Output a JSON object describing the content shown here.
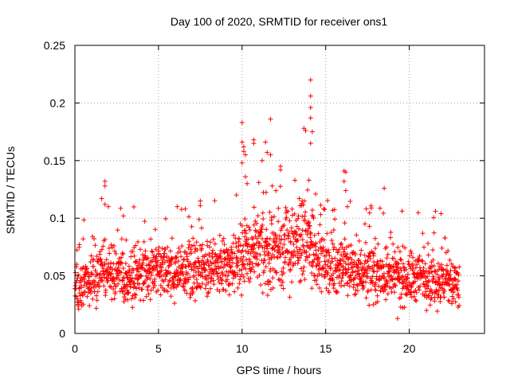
{
  "chart_data": {
    "type": "scatter",
    "title": "Day 100 of 2020, SRMTID for receiver ons1",
    "xlabel": "GPS time / hours",
    "ylabel": "SRMTID / TECUs",
    "xlim": [
      0,
      24.5
    ],
    "ylim": [
      0,
      0.25
    ],
    "xticks": [
      0,
      5,
      10,
      15,
      20
    ],
    "yticks": [
      0,
      0.05,
      0.1,
      0.15,
      0.2,
      0.25
    ],
    "xtick_labels": [
      "0",
      "5",
      "10",
      "15",
      "20"
    ],
    "ytick_labels": [
      "0",
      "0.05",
      "0.1",
      "0.15",
      "0.2",
      "0.25"
    ],
    "grid": true,
    "marker": "+",
    "colors": {
      "points": "#ff0000",
      "axes": "#000000",
      "grid": "#a0a0a0"
    },
    "x_range_data": [
      0,
      23
    ],
    "baseline_profile": [
      {
        "x": 0,
        "y": 0.042
      },
      {
        "x": 1,
        "y": 0.048
      },
      {
        "x": 2,
        "y": 0.055
      },
      {
        "x": 3,
        "y": 0.05
      },
      {
        "x": 4,
        "y": 0.052
      },
      {
        "x": 5,
        "y": 0.055
      },
      {
        "x": 6,
        "y": 0.052
      },
      {
        "x": 7,
        "y": 0.056
      },
      {
        "x": 8,
        "y": 0.058
      },
      {
        "x": 9,
        "y": 0.06
      },
      {
        "x": 10,
        "y": 0.068
      },
      {
        "x": 11,
        "y": 0.07
      },
      {
        "x": 12,
        "y": 0.072
      },
      {
        "x": 13,
        "y": 0.078
      },
      {
        "x": 14,
        "y": 0.08
      },
      {
        "x": 15,
        "y": 0.06
      },
      {
        "x": 16,
        "y": 0.058
      },
      {
        "x": 17,
        "y": 0.055
      },
      {
        "x": 18,
        "y": 0.052
      },
      {
        "x": 19,
        "y": 0.05
      },
      {
        "x": 20,
        "y": 0.048
      },
      {
        "x": 21,
        "y": 0.05
      },
      {
        "x": 22,
        "y": 0.045
      },
      {
        "x": 23,
        "y": 0.04
      }
    ],
    "notable_points": [
      {
        "x": 14.1,
        "y": 0.22
      },
      {
        "x": 14.1,
        "y": 0.206
      },
      {
        "x": 14.1,
        "y": 0.196
      },
      {
        "x": 14.1,
        "y": 0.187
      },
      {
        "x": 13.7,
        "y": 0.178
      },
      {
        "x": 13.8,
        "y": 0.176
      },
      {
        "x": 14.2,
        "y": 0.175
      },
      {
        "x": 14.1,
        "y": 0.165
      },
      {
        "x": 11.7,
        "y": 0.186
      },
      {
        "x": 10.0,
        "y": 0.183
      },
      {
        "x": 10.0,
        "y": 0.166
      },
      {
        "x": 10.1,
        "y": 0.162
      },
      {
        "x": 10.1,
        "y": 0.158
      },
      {
        "x": 10.2,
        "y": 0.155
      },
      {
        "x": 10.0,
        "y": 0.148
      },
      {
        "x": 10.7,
        "y": 0.168
      },
      {
        "x": 10.7,
        "y": 0.165
      },
      {
        "x": 11.4,
        "y": 0.166
      },
      {
        "x": 11.5,
        "y": 0.157
      },
      {
        "x": 11.7,
        "y": 0.155
      },
      {
        "x": 11.2,
        "y": 0.15
      },
      {
        "x": 12.3,
        "y": 0.145
      },
      {
        "x": 12.3,
        "y": 0.142
      },
      {
        "x": 16.1,
        "y": 0.141
      },
      {
        "x": 16.2,
        "y": 0.14
      },
      {
        "x": 16.1,
        "y": 0.132
      },
      {
        "x": 16.2,
        "y": 0.124
      },
      {
        "x": 1.8,
        "y": 0.132
      },
      {
        "x": 1.8,
        "y": 0.128
      },
      {
        "x": 1.6,
        "y": 0.117
      },
      {
        "x": 1.8,
        "y": 0.112
      },
      {
        "x": 2.0,
        "y": 0.11
      },
      {
        "x": 18.5,
        "y": 0.126
      },
      {
        "x": 21.9,
        "y": 0.104
      },
      {
        "x": 10.2,
        "y": 0.136
      },
      {
        "x": 10.3,
        "y": 0.13
      },
      {
        "x": 11.0,
        "y": 0.131
      },
      {
        "x": 11.8,
        "y": 0.128
      },
      {
        "x": 14.4,
        "y": 0.121
      },
      {
        "x": 14.0,
        "y": 0.133
      },
      {
        "x": 13.6,
        "y": 0.115
      },
      {
        "x": 16.3,
        "y": 0.11
      },
      {
        "x": 7.5,
        "y": 0.115
      },
      {
        "x": 7.5,
        "y": 0.111
      },
      {
        "x": 6.6,
        "y": 0.108
      },
      {
        "x": 2.9,
        "y": 0.102
      },
      {
        "x": 19.3,
        "y": 0.013
      },
      {
        "x": 14.2,
        "y": 0.107
      }
    ]
  }
}
